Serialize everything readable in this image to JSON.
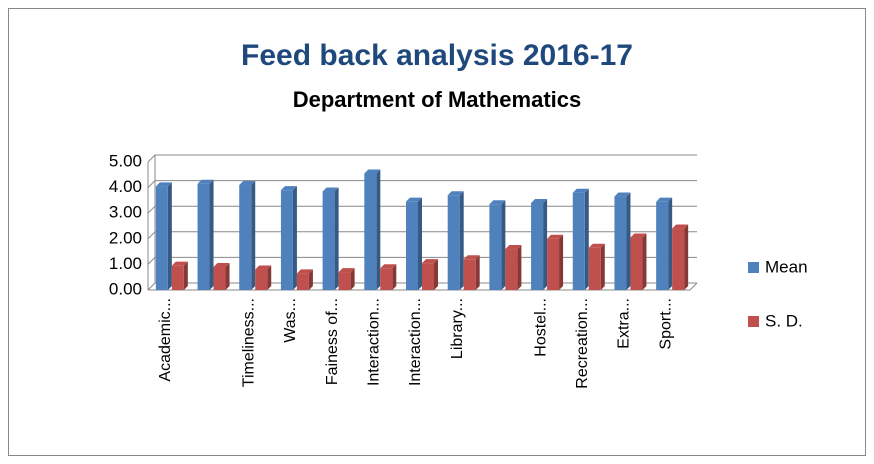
{
  "chart_data": {
    "type": "bar",
    "title": "Feed back analysis 2016-17",
    "subtitle": "Department of Mathematics",
    "categories": [
      "Academic...",
      null,
      "Timeliness...",
      "Was...",
      "Fainess of...",
      "Interaction...",
      "Interaction...",
      "Library...",
      null,
      "Hostel...",
      "Recreation...",
      "Extra...",
      "Sport..."
    ],
    "series": [
      {
        "name": "Mean",
        "color": "#4f81bd",
        "values": [
          4.05,
          4.15,
          4.1,
          3.9,
          3.85,
          4.55,
          3.45,
          3.7,
          3.35,
          3.4,
          3.8,
          3.65,
          3.45
        ]
      },
      {
        "name": "S. D.",
        "color": "#c0504d",
        "values": [
          0.95,
          0.9,
          0.8,
          0.65,
          0.7,
          0.85,
          1.05,
          1.2,
          1.6,
          2.0,
          1.65,
          2.05,
          2.4
        ]
      }
    ],
    "ylim": [
      0,
      5
    ],
    "yticks": [
      {
        "value": 0,
        "label": "0.00"
      },
      {
        "value": 1,
        "label": "1.00"
      },
      {
        "value": 2,
        "label": "2.00"
      },
      {
        "value": 3,
        "label": "3.00"
      },
      {
        "value": 4,
        "label": "4.00"
      },
      {
        "value": 5,
        "label": "5.00"
      }
    ],
    "grid": true,
    "legend": "right"
  }
}
